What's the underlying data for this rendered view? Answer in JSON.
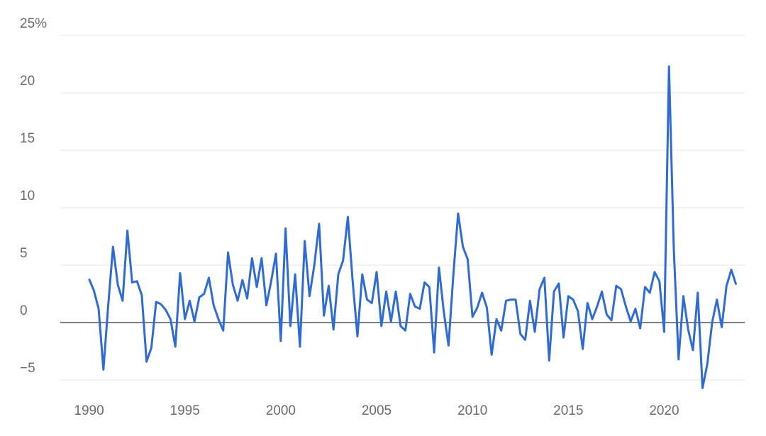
{
  "chart_data": {
    "type": "line",
    "x": [
      1990,
      1990.25,
      1990.5,
      1990.75,
      1991,
      1991.25,
      1991.5,
      1991.75,
      1992,
      1992.25,
      1992.5,
      1992.75,
      1993,
      1993.25,
      1993.5,
      1993.75,
      1994,
      1994.25,
      1994.5,
      1994.75,
      1995,
      1995.25,
      1995.5,
      1995.75,
      1996,
      1996.25,
      1996.5,
      1996.75,
      1997,
      1997.25,
      1997.5,
      1997.75,
      1998,
      1998.25,
      1998.5,
      1998.75,
      1999,
      1999.25,
      1999.5,
      1999.75,
      2000,
      2000.25,
      2000.5,
      2000.75,
      2001,
      2001.25,
      2001.5,
      2001.75,
      2002,
      2002.25,
      2002.5,
      2002.75,
      2003,
      2003.25,
      2003.5,
      2003.75,
      2004,
      2004.25,
      2004.5,
      2004.75,
      2005,
      2005.25,
      2005.5,
      2005.75,
      2006,
      2006.25,
      2006.5,
      2006.75,
      2007,
      2007.25,
      2007.5,
      2007.75,
      2008,
      2008.25,
      2008.5,
      2008.75,
      2009,
      2009.25,
      2009.5,
      2009.75,
      2010,
      2010.25,
      2010.5,
      2010.75,
      2011,
      2011.25,
      2011.5,
      2011.75,
      2012,
      2012.25,
      2012.5,
      2012.75,
      2013,
      2013.25,
      2013.5,
      2013.75,
      2014,
      2014.25,
      2014.5,
      2014.75,
      2015,
      2015.25,
      2015.5,
      2015.75,
      2016,
      2016.25,
      2016.5,
      2016.75,
      2017,
      2017.25,
      2017.5,
      2017.75,
      2018,
      2018.25,
      2018.5,
      2018.75,
      2019,
      2019.25,
      2019.5,
      2019.75,
      2020,
      2020.25,
      2020.5,
      2020.75,
      2021,
      2021.25,
      2021.5,
      2021.75,
      2022,
      2022.25,
      2022.5,
      2022.75,
      2023,
      2023.25,
      2023.5,
      2023.75
    ],
    "values": [
      3.8,
      2.8,
      1.2,
      -4.1,
      1.5,
      6.6,
      3.3,
      1.9,
      8.0,
      3.5,
      3.6,
      2.4,
      -3.4,
      -2.2,
      1.8,
      1.6,
      1.1,
      0.3,
      -2.1,
      4.3,
      0.3,
      1.9,
      0.1,
      2.2,
      2.5,
      3.9,
      1.5,
      0.3,
      -0.7,
      6.1,
      3.3,
      1.9,
      3.7,
      2.1,
      5.6,
      3.1,
      5.6,
      1.5,
      3.6,
      6.0,
      -1.6,
      8.2,
      -0.3,
      4.2,
      -2.1,
      7.1,
      2.3,
      5.0,
      8.6,
      0.6,
      3.2,
      -0.6,
      4.2,
      5.4,
      9.2,
      3.6,
      -1.2,
      4.2,
      2.0,
      1.7,
      4.4,
      -0.3,
      2.7,
      0.1,
      2.7,
      -0.3,
      -0.7,
      2.5,
      1.4,
      1.2,
      3.5,
      3.1,
      -2.6,
      4.8,
      1.0,
      -2.0,
      4.1,
      9.5,
      6.6,
      5.5,
      0.5,
      1.3,
      2.6,
      1.3,
      -2.8,
      0.3,
      -0.7,
      1.9,
      2.0,
      2.0,
      -1.0,
      -1.5,
      1.9,
      -0.8,
      2.9,
      3.9,
      -3.3,
      2.7,
      3.4,
      -1.3,
      2.3,
      2.0,
      1.0,
      -2.3,
      1.7,
      0.3,
      1.4,
      2.7,
      0.7,
      0.2,
      3.2,
      2.9,
      1.4,
      0.1,
      1.2,
      -0.5,
      3.1,
      2.6,
      4.4,
      3.6,
      -0.8,
      22.3,
      6.4,
      -3.2,
      2.3,
      -0.6,
      -2.4,
      2.6,
      -5.7,
      -3.6,
      0.0,
      2.0,
      -0.4,
      3.2,
      4.6,
      3.3
    ],
    "color": "#2f6bd8",
    "xlim": [
      1988.5,
      2024.2
    ],
    "xticks": [
      1990,
      1995,
      2000,
      2005,
      2010,
      2015,
      2020
    ],
    "ylim": [
      -6,
      25
    ],
    "yticks": [
      {
        "value": -5,
        "label": "−5"
      },
      0,
      5,
      10,
      15,
      20,
      {
        "value": 25,
        "label": "25%"
      }
    ],
    "grid": true
  }
}
